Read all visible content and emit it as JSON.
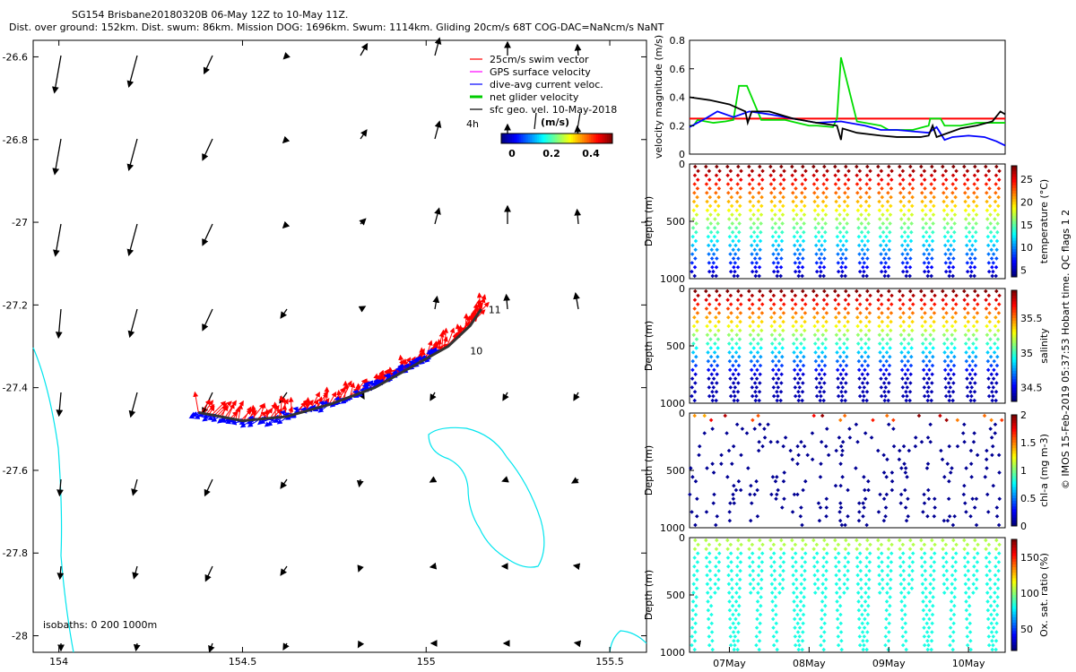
{
  "title": {
    "line1": "SG154 Brisbane20180320B 06-May 12Z to 10-May 11Z.",
    "line2": "Dist. over ground: 152km. Dist. swum: 86km. Mission DOG: 1696km. Swum: 1114km. Gliding 20cm/s 68T COG-DAC=NaNcm/s NaNT"
  },
  "chart_data": [
    {
      "type": "map",
      "name": "trajectory-map",
      "xlim": [
        153.93,
        155.6
      ],
      "ylim": [
        -28.04,
        -26.56
      ],
      "x_ticks": [
        "154",
        "154.5",
        "155",
        "155.5"
      ],
      "x_tick_values": [
        154,
        154.5,
        155,
        155.5
      ],
      "y_ticks": [
        "-26.6",
        "-26.8",
        "-27",
        "-27.2",
        "-27.4",
        "-27.6",
        "-27.8",
        "-28"
      ],
      "y_tick_values": [
        -26.6,
        -26.8,
        -27,
        -27.2,
        -27.4,
        -27.6,
        -27.8,
        -28
      ],
      "legend": [
        {
          "label": "25cm/s swim vector",
          "color": "#ff0000"
        },
        {
          "label": "GPS surface velocity",
          "color": "#ff00ff"
        },
        {
          "label": "dive-avg current veloc.",
          "color": "#0000ff"
        },
        {
          "label": "net glider velocity",
          "color": "#00cc00"
        },
        {
          "label": "sfc geo. vel. 10-May-2018",
          "color": "#000000"
        }
      ],
      "colorbar": {
        "label": "(m/s)",
        "ticks": [
          "0",
          "0.2",
          "0.4"
        ],
        "range": [
          0,
          0.5
        ]
      },
      "time_label": "4h",
      "day_labels": [
        {
          "label": "10",
          "lon": 155.1,
          "lat": -27.32
        },
        {
          "label": "11",
          "lon": 155.15,
          "lat": -27.22
        }
      ],
      "isobaths": "isobaths: 0   200  1000m",
      "track": [
        [
          154.38,
          -27.46
        ],
        [
          154.5,
          -27.48
        ],
        [
          154.62,
          -27.47
        ],
        [
          154.74,
          -27.44
        ],
        [
          154.86,
          -27.4
        ],
        [
          154.92,
          -27.37
        ],
        [
          155.0,
          -27.33
        ],
        [
          155.06,
          -27.3
        ],
        [
          155.12,
          -27.25
        ],
        [
          155.15,
          -27.21
        ]
      ]
    },
    {
      "type": "line",
      "name": "velocity-magnitude",
      "ylabel": "velocity magnitude (m/s)",
      "ylim": [
        0,
        0.8
      ],
      "y_ticks": [
        "0",
        "0.2",
        "0.4",
        "0.6",
        "0.8"
      ],
      "x_range_days": [
        6.5,
        10.46
      ],
      "series": [
        {
          "name": "swim",
          "color": "#ff0000",
          "x": [
            6.5,
            10.46
          ],
          "values": [
            0.25,
            0.25
          ]
        },
        {
          "name": "net glider",
          "color": "#00dd00",
          "x": [
            6.5,
            6.55,
            6.6,
            6.8,
            6.95,
            7.05,
            7.12,
            7.22,
            7.4,
            7.7,
            8.0,
            8.1,
            8.3,
            8.35,
            8.4,
            8.6,
            8.9,
            9.0,
            9.3,
            9.5,
            9.52,
            9.65,
            9.7,
            9.9,
            10.1,
            10.3,
            10.46
          ],
          "values": [
            0.2,
            0.2,
            0.24,
            0.22,
            0.23,
            0.24,
            0.48,
            0.48,
            0.24,
            0.24,
            0.2,
            0.2,
            0.19,
            0.25,
            0.68,
            0.23,
            0.2,
            0.17,
            0.17,
            0.2,
            0.25,
            0.25,
            0.2,
            0.2,
            0.22,
            0.22,
            0.22
          ]
        },
        {
          "name": "dive-avg current",
          "color": "#0000ff",
          "x": [
            6.5,
            6.7,
            6.85,
            7.05,
            7.25,
            7.5,
            7.8,
            8.1,
            8.4,
            8.7,
            8.9,
            9.1,
            9.3,
            9.5,
            9.6,
            9.7,
            9.8,
            10.0,
            10.2,
            10.35,
            10.46
          ],
          "values": [
            0.19,
            0.25,
            0.3,
            0.26,
            0.3,
            0.28,
            0.25,
            0.22,
            0.23,
            0.2,
            0.17,
            0.17,
            0.16,
            0.15,
            0.19,
            0.1,
            0.12,
            0.13,
            0.12,
            0.09,
            0.06
          ]
        },
        {
          "name": "sfc geo.",
          "color": "#000000",
          "x": [
            6.5,
            6.75,
            7.0,
            7.2,
            7.23,
            7.28,
            7.5,
            7.8,
            8.1,
            8.35,
            8.4,
            8.42,
            8.6,
            8.9,
            9.1,
            9.4,
            9.5,
            9.55,
            9.6,
            9.7,
            9.9,
            10.1,
            10.3,
            10.4,
            10.46
          ],
          "values": [
            0.4,
            0.38,
            0.35,
            0.3,
            0.22,
            0.3,
            0.3,
            0.25,
            0.22,
            0.2,
            0.1,
            0.18,
            0.15,
            0.13,
            0.12,
            0.12,
            0.13,
            0.2,
            0.12,
            0.14,
            0.18,
            0.2,
            0.23,
            0.3,
            0.28
          ]
        }
      ]
    },
    {
      "type": "scatter",
      "name": "temperature-section",
      "ylabel": "Depth (m)",
      "ylim": [
        1000,
        0
      ],
      "y_ticks": [
        "0",
        "500",
        "1000"
      ],
      "colorbar": {
        "label": "temperature (°C)",
        "ticks": [
          "5",
          "10",
          "15",
          "20",
          "25"
        ],
        "range": [
          3.5,
          28
        ]
      },
      "dives": 29
    },
    {
      "type": "scatter",
      "name": "salinity-section",
      "ylabel": "Depth (m)",
      "ylim": [
        1000,
        0
      ],
      "y_ticks": [
        "0",
        "500",
        "1000"
      ],
      "colorbar": {
        "label": "salinity",
        "ticks": [
          "34.5",
          "35",
          "35.5"
        ],
        "range": [
          34.3,
          35.9
        ]
      },
      "dives": 29
    },
    {
      "type": "scatter",
      "name": "chla-section",
      "ylabel": "Depth (m)",
      "ylim": [
        1000,
        0
      ],
      "y_ticks": [
        "0",
        "500",
        "1000"
      ],
      "colorbar": {
        "label": "chl-a (mg m-3)",
        "ticks": [
          "0",
          "0.5",
          "1",
          "1.5",
          "2"
        ],
        "range": [
          0,
          2
        ]
      },
      "side_label": "IMOS 15-Feb-2019 05:37:53 Hobart time. QC flags 1  2",
      "dives": 29
    },
    {
      "type": "scatter",
      "name": "oxygen-section",
      "ylabel": "Depth (m)",
      "ylim": [
        1000,
        0
      ],
      "y_ticks": [
        "0",
        "500",
        "1000"
      ],
      "x_ticks": [
        "07May",
        "08May",
        "09May",
        "10May"
      ],
      "x_tick_values": [
        7,
        8,
        9,
        10
      ],
      "x_range_days": [
        6.5,
        10.46
      ],
      "colorbar": {
        "label": "Ox. sat. ratio (%)",
        "ticks": [
          "50",
          "100",
          "150"
        ],
        "range": [
          20,
          175
        ]
      },
      "dives": 29
    }
  ]
}
